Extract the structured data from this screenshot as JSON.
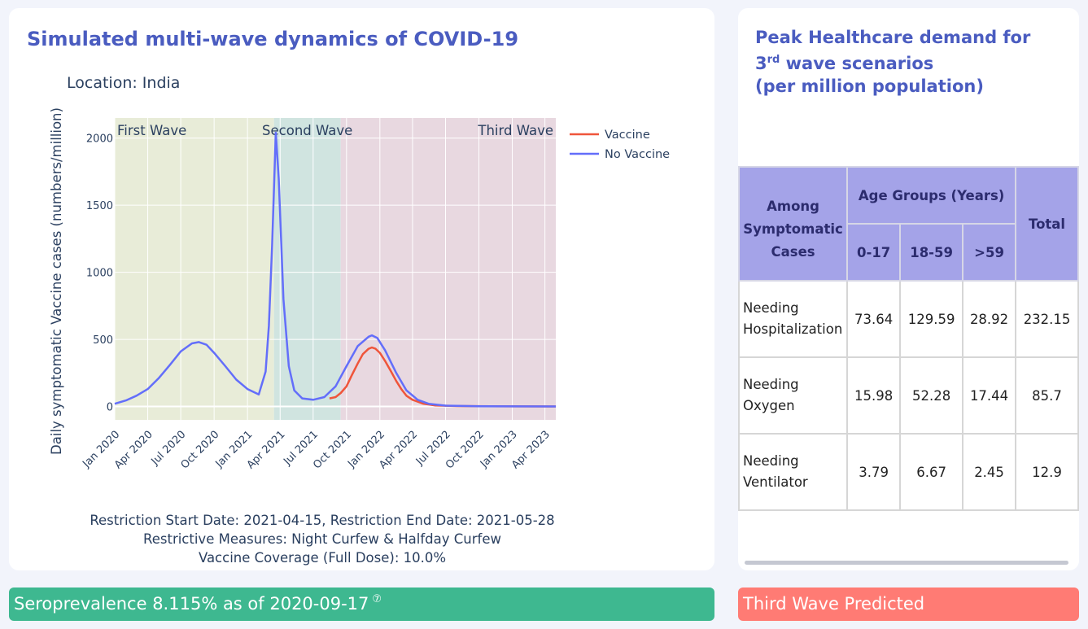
{
  "chart": {
    "title": "Simulated multi-wave dynamics of COVID-19",
    "location_label": "Location: India"
  },
  "notes": {
    "line1": "Restriction Start Date: 2021-04-15, Restriction End Date: 2021-05-28",
    "line2": "Restrictive Measures: Night Curfew & Halfday Curfew",
    "line3": "Vaccine Coverage (Full Dose): 10.0%"
  },
  "chart_data": {
    "type": "line",
    "title": "Location: India",
    "xlabel": "",
    "ylabel": "Daily symptomatic Vaccine cases (numbers/million)",
    "x_range": [
      "2020-01-01",
      "2023-05-01"
    ],
    "ylim": [
      -100,
      2150
    ],
    "yticks": [
      0,
      500,
      1000,
      1500,
      2000
    ],
    "xticks": [
      {
        "date": "2020-01-01",
        "label": "Jan 2020"
      },
      {
        "date": "2020-04-01",
        "label": "Apr 2020"
      },
      {
        "date": "2020-07-01",
        "label": "Jul 2020"
      },
      {
        "date": "2020-10-01",
        "label": "Oct 2020"
      },
      {
        "date": "2021-01-01",
        "label": "Jan 2021"
      },
      {
        "date": "2021-04-01",
        "label": "Apr 2021"
      },
      {
        "date": "2021-07-01",
        "label": "Jul 2021"
      },
      {
        "date": "2021-10-01",
        "label": "Oct 2021"
      },
      {
        "date": "2022-01-01",
        "label": "Jan 2022"
      },
      {
        "date": "2022-04-01",
        "label": "Apr 2022"
      },
      {
        "date": "2022-07-01",
        "label": "Jul 2022"
      },
      {
        "date": "2022-10-01",
        "label": "Oct 2022"
      },
      {
        "date": "2023-01-01",
        "label": "Jan 2023"
      },
      {
        "date": "2023-04-01",
        "label": "Apr 2023"
      }
    ],
    "regions": [
      {
        "label": "First Wave",
        "start": "2020-01-01",
        "end": "2021-03-15",
        "color": "#e8ecd8"
      },
      {
        "label": "Second Wave",
        "start": "2021-03-15",
        "end": "2021-09-15",
        "color": "#d0e4e0"
      },
      {
        "label": "Third Wave",
        "start": "2021-09-15",
        "end": "2023-05-01",
        "color": "#e8d8e0"
      }
    ],
    "legend_position": "top-right",
    "series": [
      {
        "name": "Vaccine",
        "color": "#ef553b",
        "points": [
          [
            "2021-08-15",
            60
          ],
          [
            "2021-09-01",
            70
          ],
          [
            "2021-09-15",
            100
          ],
          [
            "2021-10-01",
            150
          ],
          [
            "2021-10-15",
            230
          ],
          [
            "2021-11-01",
            320
          ],
          [
            "2021-11-15",
            390
          ],
          [
            "2021-12-01",
            430
          ],
          [
            "2021-12-10",
            440
          ],
          [
            "2021-12-20",
            430
          ],
          [
            "2022-01-01",
            400
          ],
          [
            "2022-01-15",
            340
          ],
          [
            "2022-02-01",
            260
          ],
          [
            "2022-02-15",
            190
          ],
          [
            "2022-03-01",
            130
          ],
          [
            "2022-03-15",
            80
          ],
          [
            "2022-04-01",
            50
          ],
          [
            "2022-05-01",
            20
          ],
          [
            "2022-06-01",
            8
          ],
          [
            "2022-08-01",
            3
          ],
          [
            "2022-11-01",
            1
          ],
          [
            "2023-05-01",
            0
          ]
        ]
      },
      {
        "name": "No Vaccine",
        "color": "#636efa",
        "points": [
          [
            "2020-01-01",
            20
          ],
          [
            "2020-02-01",
            45
          ],
          [
            "2020-03-01",
            80
          ],
          [
            "2020-04-01",
            130
          ],
          [
            "2020-05-01",
            210
          ],
          [
            "2020-06-01",
            310
          ],
          [
            "2020-07-01",
            410
          ],
          [
            "2020-08-01",
            470
          ],
          [
            "2020-08-20",
            480
          ],
          [
            "2020-09-10",
            460
          ],
          [
            "2020-10-01",
            400
          ],
          [
            "2020-11-01",
            300
          ],
          [
            "2020-12-01",
            200
          ],
          [
            "2021-01-01",
            130
          ],
          [
            "2021-02-01",
            90
          ],
          [
            "2021-02-20",
            260
          ],
          [
            "2021-03-01",
            600
          ],
          [
            "2021-03-10",
            1200
          ],
          [
            "2021-03-20",
            2040
          ],
          [
            "2021-03-28",
            1700
          ],
          [
            "2021-04-10",
            800
          ],
          [
            "2021-04-25",
            300
          ],
          [
            "2021-05-10",
            120
          ],
          [
            "2021-06-01",
            60
          ],
          [
            "2021-07-01",
            50
          ],
          [
            "2021-08-01",
            70
          ],
          [
            "2021-09-01",
            150
          ],
          [
            "2021-10-01",
            300
          ],
          [
            "2021-11-01",
            450
          ],
          [
            "2021-12-01",
            520
          ],
          [
            "2021-12-10",
            530
          ],
          [
            "2021-12-25",
            510
          ],
          [
            "2022-01-15",
            420
          ],
          [
            "2022-02-15",
            250
          ],
          [
            "2022-03-15",
            120
          ],
          [
            "2022-04-15",
            50
          ],
          [
            "2022-05-15",
            20
          ],
          [
            "2022-07-01",
            6
          ],
          [
            "2022-10-01",
            2
          ],
          [
            "2023-05-01",
            0
          ]
        ]
      }
    ]
  },
  "table": {
    "title_line1": "Peak Healthcare demand for",
    "title_line2_num": "3",
    "title_line2_sup": "rd",
    "title_line2_rest": " wave scenarios",
    "title_line3": "(per million population)",
    "header_among": "Among Symptomatic Cases",
    "header_age_groups": "Age Groups (Years)",
    "header_total": "Total",
    "age_cols": [
      "0-17",
      "18-59",
      ">59"
    ],
    "rows": [
      {
        "label": "Needing Hospitalization",
        "values": [
          "73.64",
          "129.59",
          "28.92",
          "232.15"
        ]
      },
      {
        "label": "Needing Oxygen",
        "values": [
          "15.98",
          "52.28",
          "17.44",
          "85.7"
        ]
      },
      {
        "label": "Needing Ventilator",
        "values": [
          "3.79",
          "6.67",
          "2.45",
          "12.9"
        ]
      }
    ]
  },
  "banners": {
    "seroprevalence": "Seroprevalence 8.115% as of 2020-09-17",
    "help_icon": "⑦",
    "third_wave": "Third Wave Predicted"
  }
}
